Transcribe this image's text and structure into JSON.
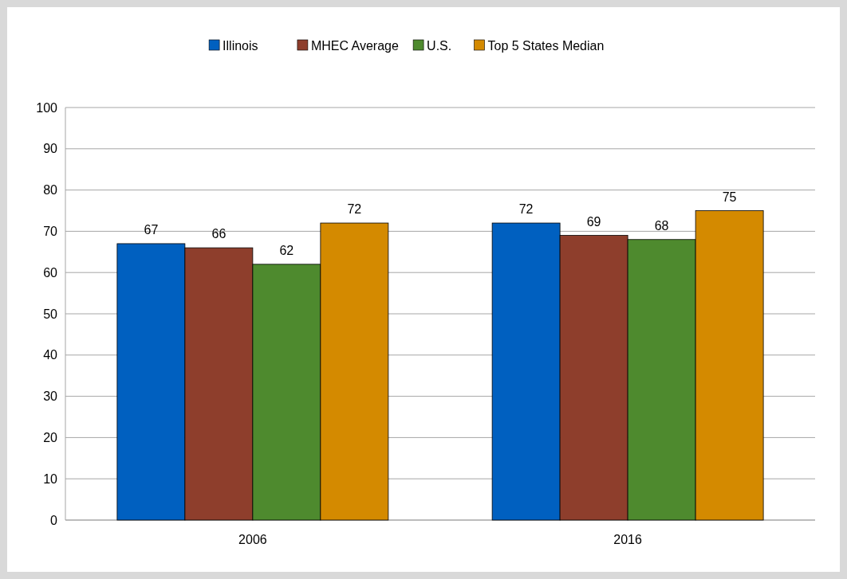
{
  "chart_data": {
    "type": "bar",
    "categories": [
      "2006",
      "2016"
    ],
    "series": [
      {
        "name": "Illinois",
        "color": "#0060c0",
        "values": [
          67,
          72
        ]
      },
      {
        "name": "MHEC Average",
        "color": "#8e3e2c",
        "values": [
          66,
          69
        ]
      },
      {
        "name": "U.S.",
        "color": "#4e8a2e",
        "values": [
          62,
          68
        ]
      },
      {
        "name": "Top 5 States Median",
        "color": "#d48a00",
        "values": [
          72,
          75
        ]
      }
    ],
    "ylim": [
      0,
      100
    ],
    "yticks": [
      0,
      10,
      20,
      30,
      40,
      50,
      60,
      70,
      80,
      90,
      100
    ],
    "grid": "y",
    "legend": "top",
    "data_labels": true
  }
}
